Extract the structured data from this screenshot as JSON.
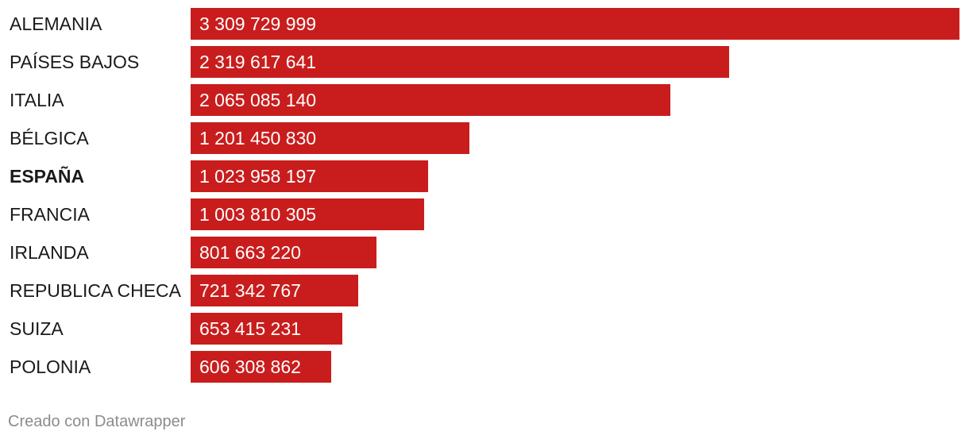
{
  "chart_data": {
    "type": "bar",
    "orientation": "horizontal",
    "bar_color": "#c91d1d",
    "highlight_category": "ESPAÑA",
    "categories": [
      "ALEMANIA",
      "PAÍSES BAJOS",
      "ITALIA",
      "BÉLGICA",
      "ESPAÑA",
      "FRANCIA",
      "IRLANDA",
      "REPUBLICA CHECA",
      "SUIZA",
      "POLONIA"
    ],
    "values": [
      3309729999,
      2319617641,
      2065085140,
      1201450830,
      1023958197,
      1003810305,
      801663220,
      721342767,
      653415231,
      606308862
    ],
    "value_labels": [
      "3 309 729 999",
      "2 319 617 641",
      "2 065 085 140",
      "1 201 450 830",
      "1 023 958 197",
      "1 003 810 305",
      "801 663 220",
      "721 342 767",
      "653 415 231",
      "606 308 862"
    ],
    "xlim": [
      0,
      3309729999
    ],
    "grid": false,
    "legend": "none"
  },
  "footer": {
    "credit": "Creado con Datawrapper"
  }
}
